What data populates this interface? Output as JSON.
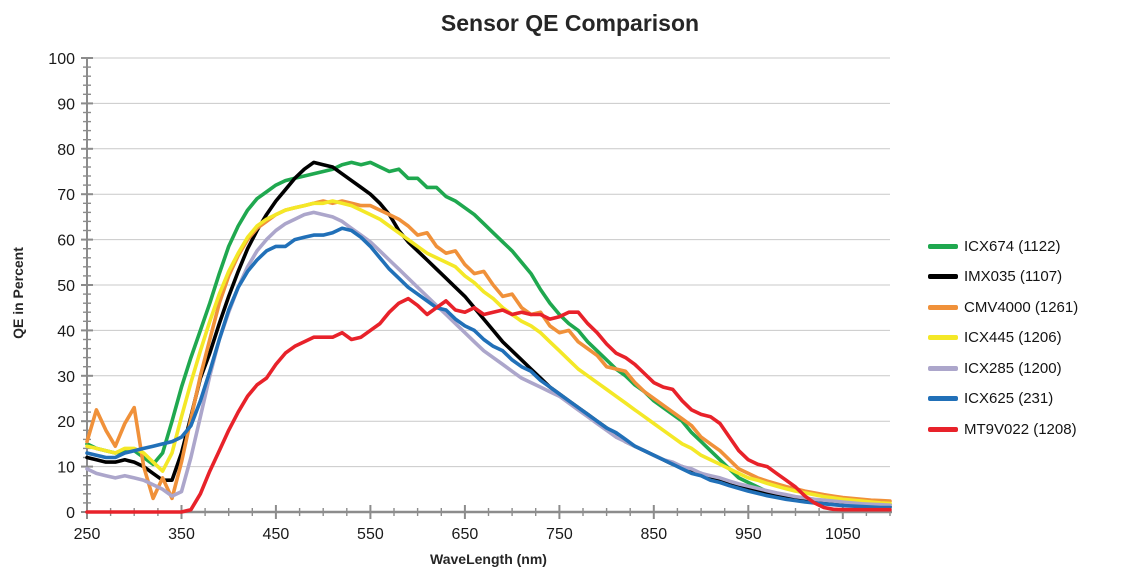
{
  "chart_data": {
    "type": "line",
    "title": "Sensor QE Comparison",
    "xlabel": "WaveLength (nm)",
    "ylabel": "QE in Percent",
    "xlim": [
      250,
      1100
    ],
    "ylim": [
      0,
      100
    ],
    "x_major_ticks": [
      250,
      350,
      450,
      550,
      650,
      750,
      850,
      950,
      1050
    ],
    "x_minor_tick_step": 25,
    "y_major_ticks": [
      0,
      10,
      20,
      30,
      40,
      50,
      60,
      70,
      80,
      90,
      100
    ],
    "y_minor_tick_step": 2,
    "grid": "horizontal",
    "legend_position": "right",
    "axis_color": "#8c8c8c",
    "grid_color": "#c9c9c9",
    "x": [
      250,
      260,
      270,
      280,
      290,
      300,
      310,
      320,
      330,
      340,
      350,
      360,
      370,
      380,
      390,
      400,
      410,
      420,
      430,
      440,
      450,
      460,
      470,
      480,
      490,
      500,
      510,
      520,
      530,
      540,
      550,
      560,
      570,
      580,
      590,
      600,
      610,
      620,
      630,
      640,
      650,
      660,
      670,
      680,
      690,
      700,
      710,
      720,
      730,
      740,
      750,
      760,
      770,
      780,
      790,
      800,
      810,
      820,
      830,
      840,
      850,
      860,
      870,
      880,
      890,
      900,
      910,
      920,
      930,
      940,
      950,
      960,
      970,
      980,
      990,
      1000,
      1010,
      1020,
      1030,
      1040,
      1050,
      1060,
      1070,
      1080,
      1090,
      1100
    ],
    "series": [
      {
        "name": "ICX674 (1122)",
        "color": "#1fa84f",
        "values": [
          15,
          14,
          13.5,
          13,
          13.5,
          13.5,
          12,
          10.5,
          13,
          20,
          27.5,
          34,
          40,
          46,
          52.5,
          58.5,
          63,
          66.5,
          69,
          70.5,
          72,
          73,
          73.5,
          74,
          74.5,
          75,
          75.5,
          76.5,
          77,
          76.5,
          77,
          76,
          75,
          75.5,
          73.5,
          73.5,
          71.5,
          71.5,
          69.5,
          68.5,
          67,
          65.5,
          63.5,
          61.5,
          59.5,
          57.5,
          55,
          52.5,
          49,
          46,
          43.5,
          41.5,
          40,
          37.5,
          35.5,
          33.5,
          31.5,
          30,
          28,
          26.5,
          24.5,
          23,
          21.5,
          20,
          17.5,
          15.5,
          13.5,
          11.5,
          9.5,
          7.5,
          6.5,
          5.5,
          4.5,
          4,
          3.5,
          3,
          2.8,
          2.6,
          2.4,
          2.2,
          2.1,
          2,
          1.9,
          1.8,
          1.7,
          1.7
        ]
      },
      {
        "name": "IMX035 (1107)",
        "color": "#000000",
        "values": [
          12,
          11.5,
          11,
          11,
          11.5,
          11,
          10,
          8.5,
          7,
          7,
          13,
          21,
          29.5,
          35,
          41.5,
          47.5,
          53,
          58,
          62,
          65.5,
          68.5,
          71,
          73.5,
          75.5,
          77,
          76.5,
          76,
          74.5,
          73,
          71.5,
          70,
          68,
          65.5,
          62,
          59.5,
          57.5,
          55.5,
          53.5,
          51.5,
          49.5,
          47.5,
          45,
          42.5,
          40,
          37.5,
          35.5,
          33.5,
          31.5,
          29.5,
          27.5,
          26,
          24.5,
          23,
          21.5,
          20,
          18.5,
          17,
          15.5,
          14.5,
          13.5,
          12.5,
          11.5,
          10.5,
          10,
          9,
          8.5,
          7.5,
          7,
          6,
          5.5,
          5,
          4.5,
          4,
          3.6,
          3.2,
          2.9,
          2.6,
          2.4,
          2.2,
          2,
          1.8,
          1.7,
          1.5,
          1.4,
          1.3,
          1.2
        ]
      },
      {
        "name": "CMV4000 (1261)",
        "color": "#f0913a",
        "values": [
          15.5,
          22.5,
          18,
          14.5,
          19.5,
          23,
          10,
          3,
          7.5,
          3,
          11,
          20.5,
          30,
          38,
          46,
          52,
          56.5,
          60,
          62.5,
          64,
          65.5,
          66.5,
          67,
          67.5,
          68,
          68.5,
          68,
          68.5,
          68,
          67.5,
          67.5,
          66.5,
          65.5,
          64.5,
          63,
          61,
          61.5,
          58.5,
          57,
          57.5,
          54.5,
          52.5,
          53,
          50,
          47.5,
          48,
          45,
          43.5,
          44,
          41,
          39.5,
          40,
          37.5,
          36,
          34.5,
          32,
          31.5,
          31,
          28.5,
          26.5,
          25,
          23.5,
          22,
          20.5,
          19,
          16.5,
          15,
          13.5,
          11.5,
          9.5,
          8.5,
          7.5,
          6.8,
          6.2,
          5.6,
          5.1,
          4.6,
          4.2,
          3.8,
          3.5,
          3.2,
          3,
          2.8,
          2.6,
          2.5,
          2.4
        ]
      },
      {
        "name": "ICX445 (1206)",
        "color": "#f4e827",
        "values": [
          14.5,
          14,
          13.5,
          13,
          14,
          14,
          13,
          11,
          9,
          13,
          21,
          28.5,
          35.5,
          42,
          48,
          53,
          57,
          60.5,
          63,
          64.5,
          65.5,
          66.5,
          67,
          67.5,
          68,
          68,
          68.5,
          68,
          67.5,
          66.5,
          65.5,
          64.5,
          63,
          61.5,
          60,
          58.5,
          57,
          56,
          55,
          54,
          52,
          50.5,
          48.5,
          47,
          45,
          43.5,
          42,
          41,
          39.5,
          37.5,
          35.5,
          33.5,
          31.5,
          30,
          28.5,
          27,
          25.5,
          24,
          22.5,
          21,
          19.5,
          18,
          16.5,
          15,
          14,
          12.5,
          11.5,
          10.5,
          9.5,
          8.5,
          7.5,
          7,
          6.3,
          5.7,
          5.1,
          4.6,
          4.2,
          3.8,
          3.4,
          3.1,
          2.8,
          2.6,
          2.4,
          2.2,
          2,
          1.9
        ]
      },
      {
        "name": "ICX285 (1200)",
        "color": "#aca6cb",
        "values": [
          9.5,
          8.5,
          8,
          7.5,
          8,
          7.5,
          7,
          6,
          5,
          3.5,
          4.5,
          12,
          21,
          30,
          38,
          44,
          49.5,
          54,
          57.5,
          60,
          62,
          63.5,
          64.5,
          65.5,
          66,
          65.5,
          65,
          64,
          62.5,
          61,
          59.5,
          57.5,
          55.5,
          53.5,
          51.5,
          49.5,
          47.5,
          45.5,
          43.5,
          41.5,
          39.5,
          37.5,
          35.5,
          34,
          32.5,
          31,
          29.5,
          28.5,
          27.5,
          26.5,
          25.5,
          24,
          22.5,
          21,
          19.5,
          18,
          16.5,
          15.5,
          14.5,
          13.5,
          12.5,
          11.5,
          11,
          10,
          9.5,
          8.5,
          8,
          7.5,
          6.8,
          6.2,
          5.7,
          5.2,
          4.7,
          4.2,
          3.8,
          3.4,
          3.1,
          2.8,
          2.6,
          2.4,
          2.2,
          2,
          1.8,
          1.7,
          1.6,
          1.5
        ]
      },
      {
        "name": "ICX625 (231)",
        "color": "#2170b8",
        "values": [
          13,
          12.5,
          12,
          12,
          13,
          13.5,
          14,
          14.5,
          15,
          15.5,
          16.5,
          19,
          24.5,
          31,
          38,
          44.5,
          49.5,
          53,
          55.5,
          57.5,
          58.5,
          58.5,
          60,
          60.5,
          61,
          61,
          61.5,
          62.5,
          62,
          60.5,
          58.5,
          56,
          53.5,
          51.5,
          49.5,
          48,
          46.5,
          45,
          44.5,
          42.5,
          41,
          40,
          38,
          36.5,
          35.5,
          33.5,
          32,
          31,
          29,
          27.5,
          26,
          24.5,
          23,
          21.5,
          20,
          18.5,
          17.5,
          16,
          14.5,
          13.5,
          12.5,
          11.5,
          10.5,
          9.5,
          8.5,
          8,
          7,
          6.5,
          5.8,
          5.2,
          4.6,
          4.1,
          3.6,
          3.2,
          2.8,
          2.5,
          2.2,
          2,
          1.8,
          1.6,
          1.4,
          1.3,
          1.2,
          1.1,
          1,
          1
        ]
      },
      {
        "name": "MT9V022 (1208)",
        "color": "#e8222a",
        "values": [
          0,
          0,
          0,
          0,
          0,
          0,
          0,
          0,
          0,
          0,
          0,
          0.5,
          4,
          9,
          13.5,
          18,
          22,
          25.5,
          28,
          29.5,
          32.5,
          35,
          36.5,
          37.5,
          38.5,
          38.5,
          38.5,
          39.5,
          38,
          38.5,
          40,
          41.5,
          44,
          46,
          47,
          45.5,
          43.5,
          45,
          46.5,
          44.5,
          44,
          45,
          43.5,
          44,
          44.5,
          43.5,
          44,
          43.5,
          43.5,
          42.5,
          43,
          44,
          44,
          41.5,
          39.5,
          37,
          35,
          34,
          32.5,
          30.5,
          28.5,
          27.5,
          27,
          24.5,
          22.5,
          21.5,
          21,
          19.5,
          16.5,
          13.5,
          11.5,
          10.5,
          10,
          8.5,
          7,
          5.5,
          3.5,
          2,
          1,
          0.6,
          0.5,
          0.5,
          0.5,
          0.5,
          0.5,
          0.5
        ]
      }
    ]
  }
}
